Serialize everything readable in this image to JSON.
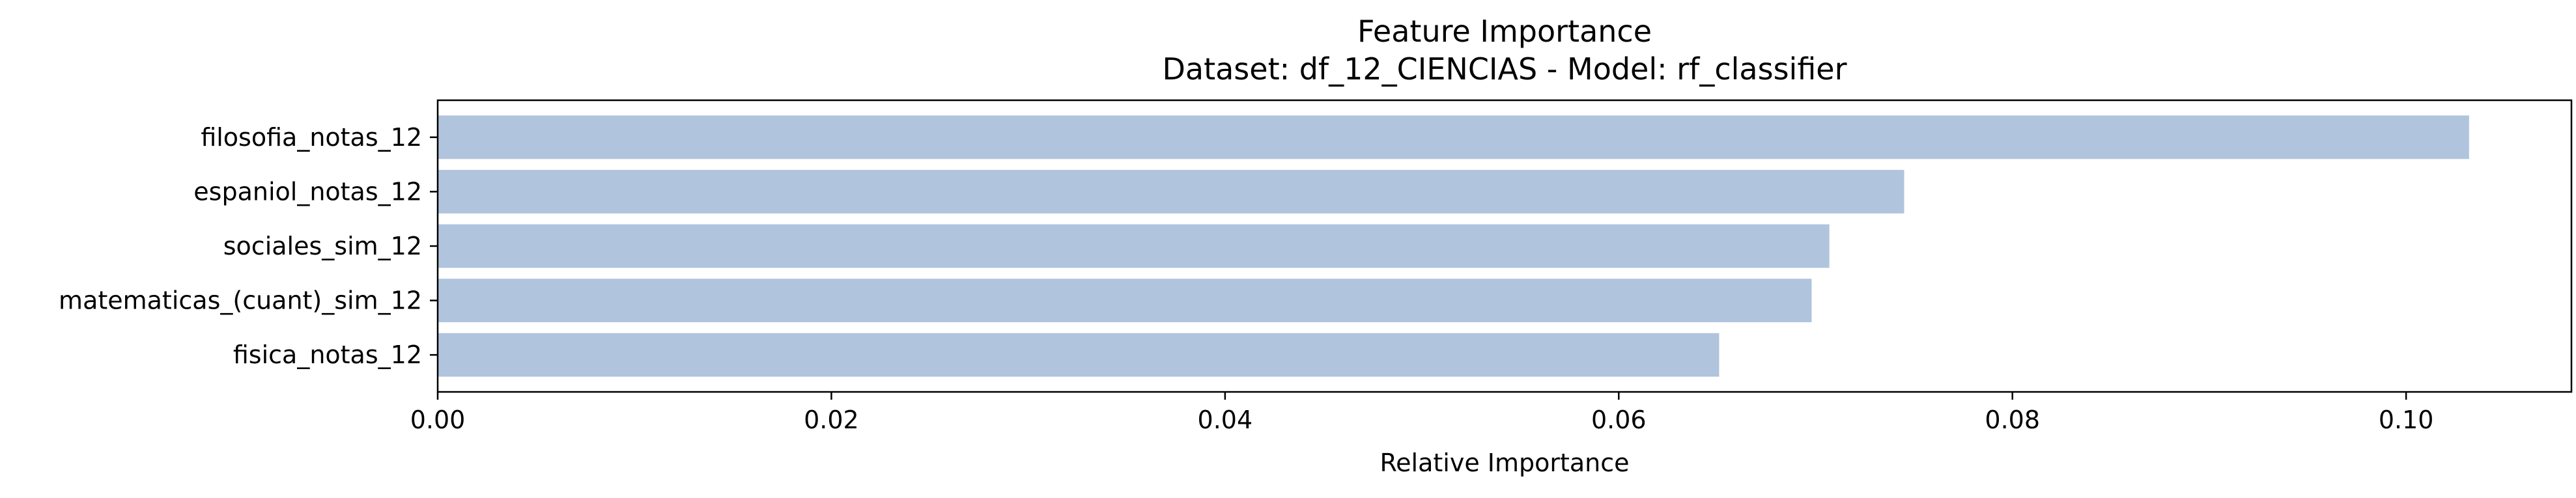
{
  "chart_data": {
    "type": "bar",
    "orientation": "horizontal",
    "title": "Feature Importance",
    "subtitle": "Dataset: df_12_CIENCIAS  -  Model: rf_classifier",
    "xlabel": "Relative Importance",
    "ylabel": "",
    "categories": [
      "filosofia_notas_12",
      "espaniol_notas_12",
      "sociales_sim_12",
      "matematicas_(cuant)_sim_12",
      "fisica_notas_12"
    ],
    "values": [
      0.1032,
      0.0745,
      0.0707,
      0.0698,
      0.0651
    ],
    "xlim": [
      0.0,
      0.1084
    ],
    "xticks": [
      0.0,
      0.02,
      0.04,
      0.06,
      0.08,
      0.1
    ],
    "xtick_labels": [
      "0.00",
      "0.02",
      "0.04",
      "0.06",
      "0.08",
      "0.10"
    ],
    "bar_color": "#b0c4de",
    "grid": false,
    "legend": "none"
  }
}
